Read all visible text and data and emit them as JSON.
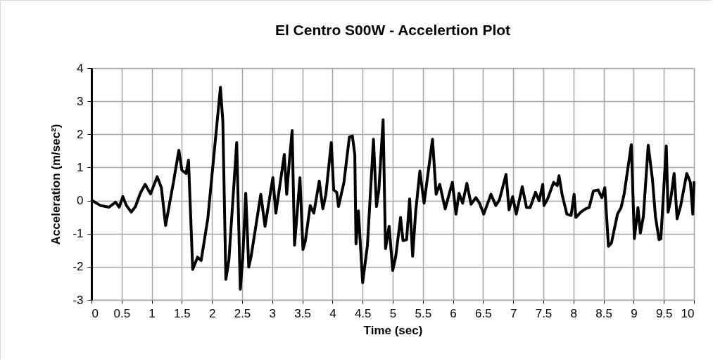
{
  "chart_data": {
    "type": "line",
    "title": "El Centro S00W - Accelertion Plot",
    "xlabel": "Time (sec)",
    "ylabel": "Acceleration (m/sec²)",
    "xlim": [
      0,
      10
    ],
    "xticks": [
      0,
      0.5,
      1,
      1.5,
      2,
      2.5,
      3,
      3.5,
      4,
      4.5,
      5,
      5.5,
      6,
      6.5,
      7,
      7.5,
      8,
      8.5,
      9,
      9.5,
      10
    ],
    "ylim": [
      -3,
      4
    ],
    "yticks": [
      -3,
      -2,
      -1,
      0,
      1,
      2,
      3,
      4
    ],
    "grid": true,
    "marker": "none",
    "line_style": "solid",
    "series": [
      {
        "color": "#000000",
        "x": [
          0.01,
          0.15,
          0.29,
          0.4,
          0.46,
          0.52,
          0.58,
          0.66,
          0.73,
          0.81,
          0.89,
          0.98,
          1.09,
          1.16,
          1.23,
          1.36,
          1.45,
          1.5,
          1.57,
          1.61,
          1.68,
          1.76,
          1.82,
          1.93,
          2.04,
          2.14,
          2.18,
          2.23,
          2.28,
          2.41,
          2.47,
          2.51,
          2.56,
          2.61,
          2.65,
          2.81,
          2.88,
          3.01,
          3.06,
          3.2,
          3.24,
          3.29,
          3.33,
          3.37,
          3.46,
          3.51,
          3.55,
          3.63,
          3.69,
          3.78,
          3.84,
          3.89,
          3.98,
          4.02,
          4.07,
          4.1,
          4.19,
          4.28,
          4.33,
          4.37,
          4.39,
          4.43,
          4.5,
          4.58,
          4.68,
          4.73,
          4.77,
          4.84,
          4.88,
          4.94,
          5.0,
          5.05,
          5.13,
          5.17,
          5.23,
          5.28,
          5.33,
          5.38,
          5.45,
          5.52,
          5.66,
          5.72,
          5.78,
          5.87,
          5.99,
          6.05,
          6.1,
          6.16,
          6.23,
          6.3,
          6.38,
          6.44,
          6.51,
          6.63,
          6.71,
          6.77,
          6.88,
          6.93,
          6.99,
          7.05,
          7.15,
          7.22,
          7.28,
          7.37,
          7.43,
          7.49,
          7.51,
          7.57,
          7.67,
          7.73,
          7.76,
          7.81,
          7.89,
          7.96,
          8.01,
          8.04,
          8.12,
          8.2,
          8.26,
          8.33,
          8.41,
          8.47,
          8.52,
          8.58,
          8.63,
          8.73,
          8.79,
          8.84,
          8.96,
          9.01,
          9.07,
          9.11,
          9.16,
          9.24,
          9.31,
          9.36,
          9.42,
          9.45,
          9.54,
          9.57,
          9.61,
          9.67,
          9.72,
          9.78,
          9.88,
          9.94,
          9.98,
          10
        ],
        "values": [
          0,
          -0.15,
          -0.2,
          -0.05,
          -0.2,
          0.12,
          -0.15,
          -0.35,
          -0.18,
          0.22,
          0.49,
          0.2,
          0.72,
          0.39,
          -0.75,
          0.55,
          1.52,
          0.92,
          0.82,
          1.22,
          -2.08,
          -1.71,
          -1.81,
          -0.55,
          1.52,
          3.42,
          2.39,
          -2.38,
          -1.81,
          1.75,
          -2.68,
          -1.75,
          0.22,
          -2.01,
          -1.68,
          0.19,
          -0.78,
          0.69,
          -0.38,
          1.39,
          0.19,
          1.32,
          2.11,
          -1.35,
          0.69,
          -1.48,
          -1.21,
          -0.15,
          -0.38,
          0.59,
          -0.25,
          0.19,
          1.75,
          0.32,
          0.25,
          -0.18,
          0.55,
          1.92,
          1.95,
          1.39,
          -1.31,
          -0.31,
          -2.48,
          -1.35,
          1.85,
          -0.18,
          0.32,
          2.44,
          -1.45,
          -0.78,
          -2.11,
          -1.68,
          -0.51,
          -1.21,
          -1.18,
          0.05,
          -1.68,
          -0.35,
          0.89,
          -0.08,
          1.85,
          0.19,
          0.49,
          -0.25,
          0.55,
          -0.41,
          0.22,
          -0.08,
          0.52,
          -0.11,
          0.09,
          -0.08,
          -0.41,
          0.19,
          -0.15,
          0.02,
          0.79,
          -0.28,
          0.12,
          -0.41,
          0.42,
          -0.21,
          -0.21,
          0.25,
          -0.01,
          0.49,
          -0.15,
          0.05,
          0.55,
          0.45,
          0.75,
          0.19,
          -0.41,
          -0.45,
          0.19,
          -0.51,
          -0.35,
          -0.25,
          -0.21,
          0.29,
          0.32,
          0.09,
          0.39,
          -1.38,
          -1.28,
          -0.41,
          -0.21,
          0.19,
          1.69,
          -1.15,
          -0.21,
          -0.98,
          -0.48,
          1.67,
          0.65,
          -0.48,
          -1.18,
          -1.15,
          1.65,
          -0.35,
          -0.01,
          0.82,
          -0.55,
          -0.15,
          0.82,
          0.55,
          -0.41,
          0.55
        ]
      }
    ]
  }
}
